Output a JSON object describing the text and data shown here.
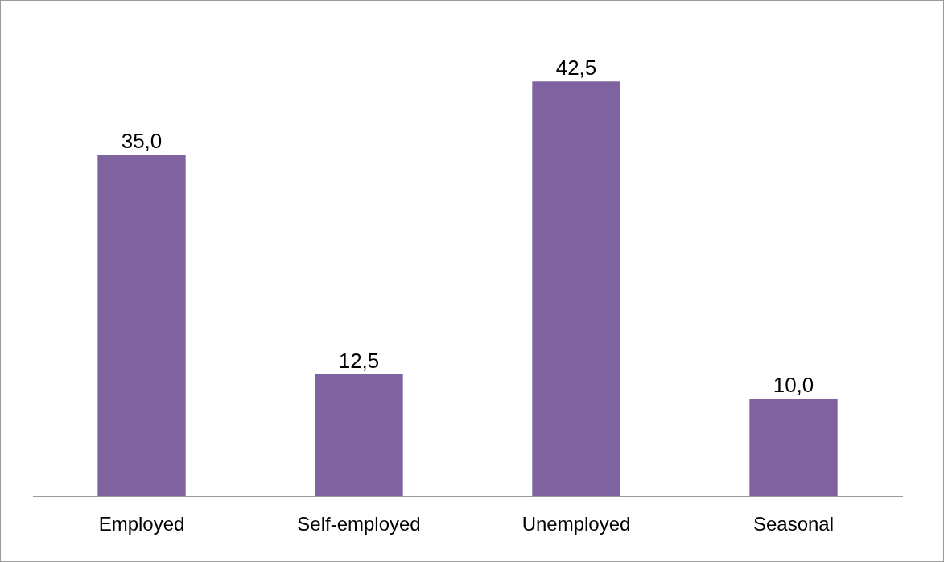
{
  "chart_data": {
    "type": "bar",
    "categories": [
      "Employed",
      "Self-employed",
      "Unemployed",
      "Seasonal"
    ],
    "values": [
      35.0,
      12.5,
      42.5,
      10.0
    ],
    "value_labels": [
      "35,0",
      "12,5",
      "42,5",
      "10,0"
    ],
    "color": "#7f63a0",
    "grid": false,
    "legend": false,
    "tick_labels": "x"
  }
}
